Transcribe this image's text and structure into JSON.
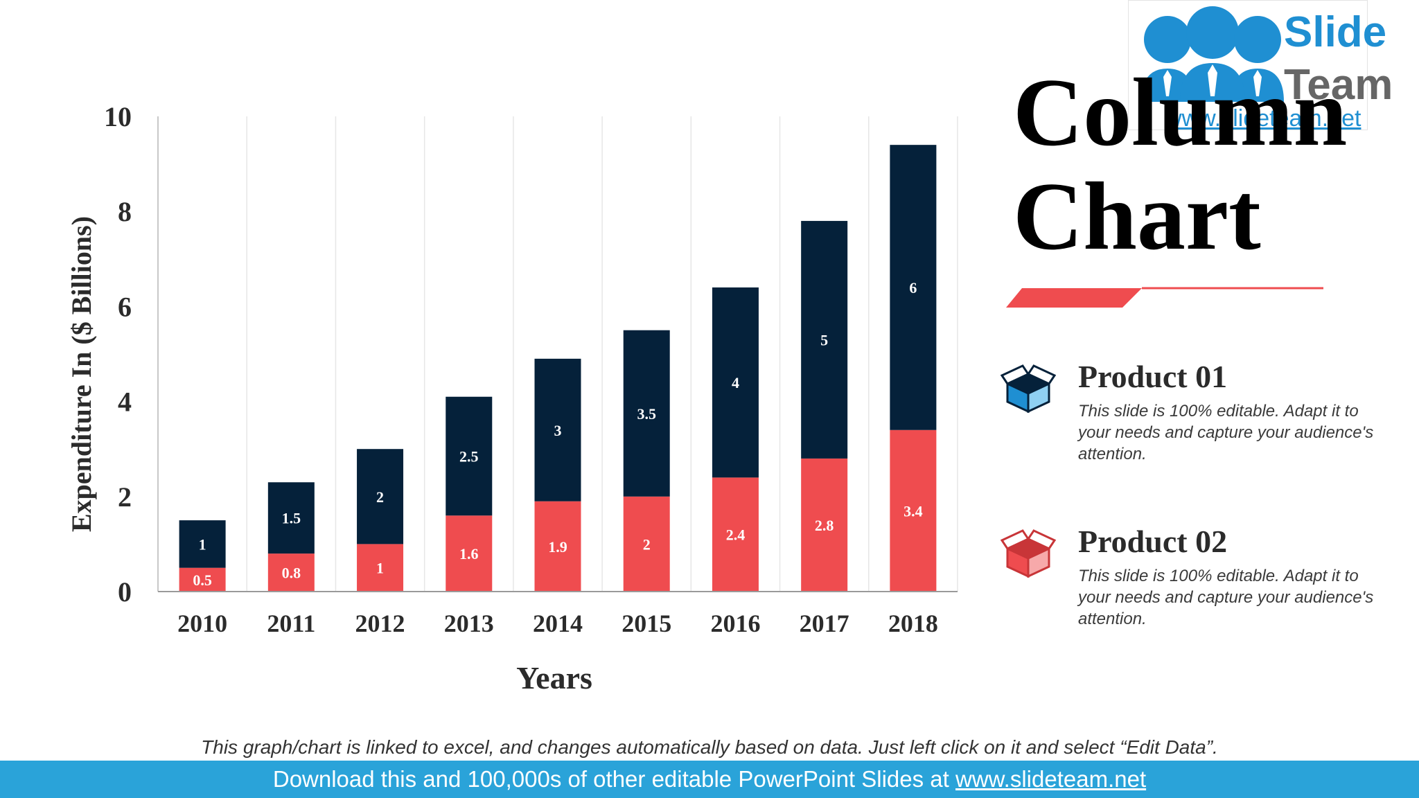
{
  "slide": {
    "title_line1": "Column",
    "title_line2": "Chart",
    "footnote": "This graph/chart is linked to excel, and changes automatically based on data. Just left click on it and select “Edit Data”.",
    "banner_text": "Download this and 100,000s of other editable PowerPoint Slides at ",
    "banner_link": "www.slideteam.net"
  },
  "logo": {
    "line1": "Slide",
    "line2": "Team",
    "url": "www.slideteam.net"
  },
  "colors": {
    "product01": "#05213a",
    "product02": "#ef4c4f",
    "accent": "#ef4c4f",
    "banner": "#2aa3d9",
    "logo_blue": "#1f8fd2"
  },
  "legend": [
    {
      "title": "Product 01",
      "description": "This slide is 100% editable. Adapt it to your needs and capture your audience's attention.",
      "icon": "box-icon"
    },
    {
      "title": "Product 02",
      "description": "This slide is 100% editable. Adapt it to your needs and capture your audience's attention.",
      "icon": "box-icon"
    }
  ],
  "chart_data": {
    "type": "bar",
    "stacked": true,
    "categories": [
      "2010",
      "2011",
      "2012",
      "2013",
      "2014",
      "2015",
      "2016",
      "2017",
      "2018"
    ],
    "series": [
      {
        "name": "Product 02",
        "values": [
          0.5,
          0.8,
          1,
          1.6,
          1.9,
          2,
          2.4,
          2.8,
          3.4
        ]
      },
      {
        "name": "Product 01",
        "values": [
          1,
          1.5,
          2,
          2.5,
          3,
          3.5,
          4,
          5,
          6
        ]
      }
    ],
    "data_labels": [
      [
        "0.5",
        "0.8",
        "1",
        "1.6",
        "1.9",
        "2",
        "2.4",
        "2.8",
        "3.4"
      ],
      [
        "1",
        "1.5",
        "2",
        "2.5",
        "3",
        "3.5",
        "4",
        "5",
        "6"
      ]
    ],
    "yticks": [
      0,
      2,
      4,
      6,
      8,
      10
    ],
    "ytick_labels": [
      "0",
      "2",
      "4",
      "6",
      "8",
      "10"
    ],
    "ylim": [
      0,
      10
    ],
    "xlabel": "Years",
    "ylabel": "Expenditure In ($ Billions)",
    "grid": "vertical",
    "legend_position": "right"
  }
}
